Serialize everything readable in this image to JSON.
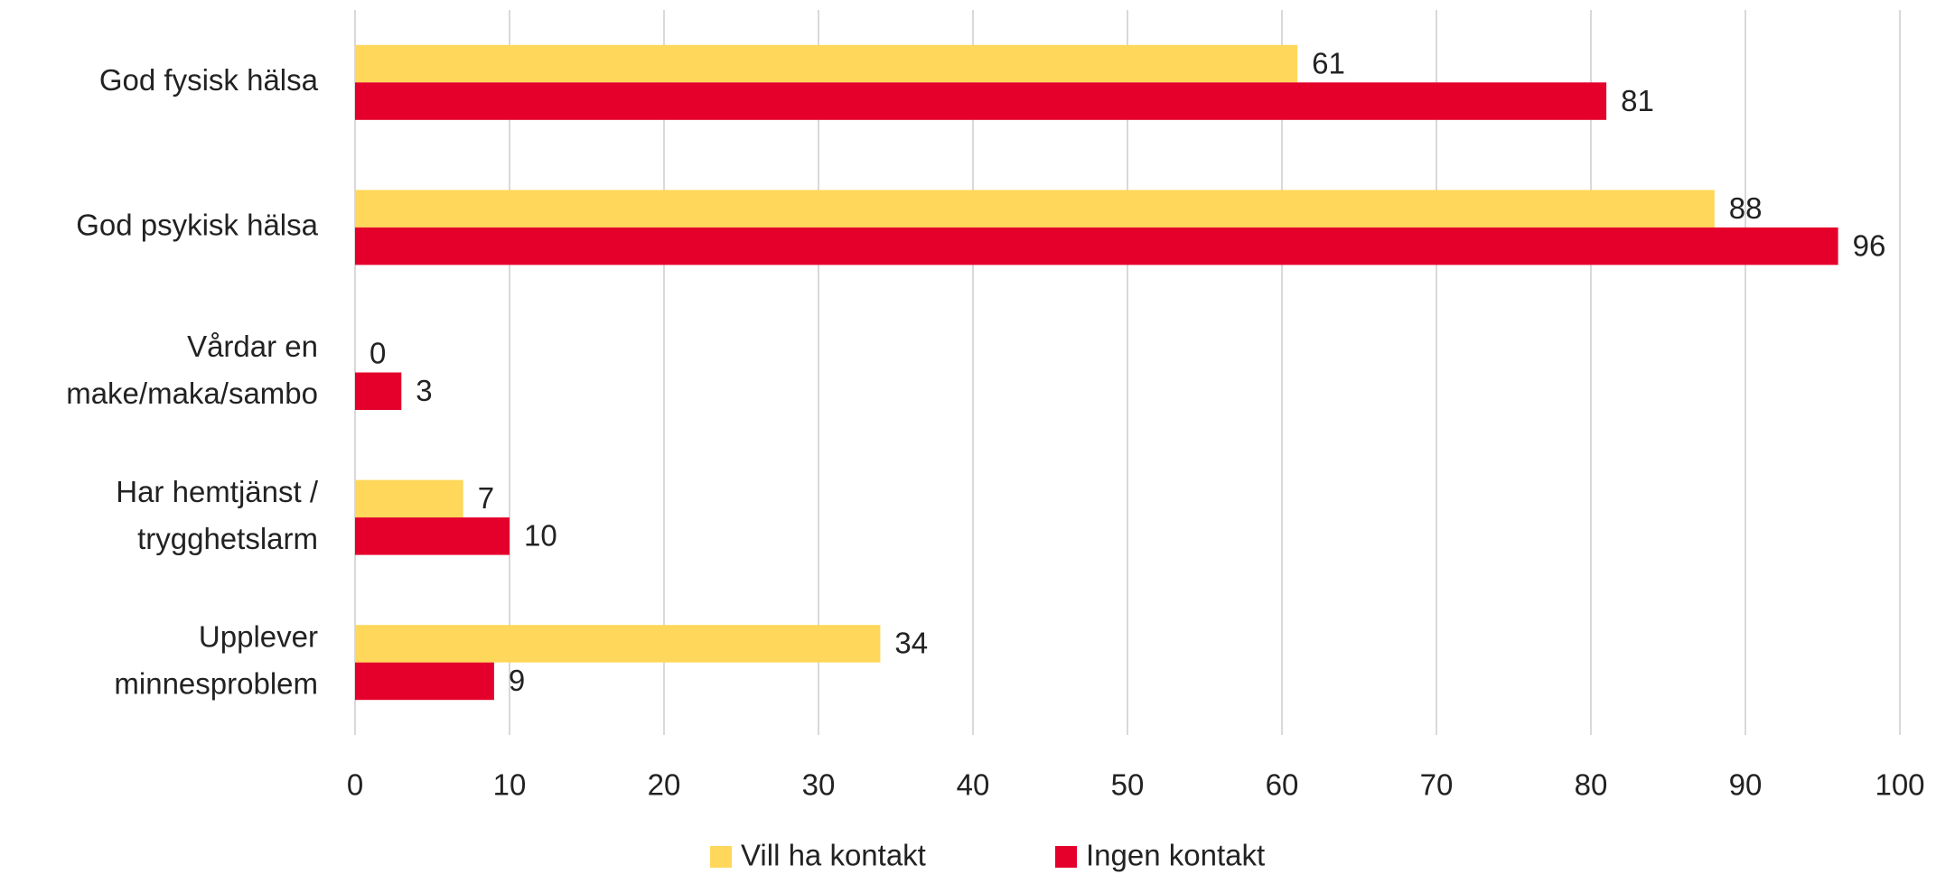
{
  "chart_data": {
    "type": "hbar",
    "categories": [
      [
        "God fysisk hälsa"
      ],
      [
        "God psykisk hälsa"
      ],
      [
        "Vårdar en",
        "make/maka/sambo"
      ],
      [
        "Har hemtjänst /",
        "trygghetslarm"
      ],
      [
        "Upplever",
        "minnesproblem"
      ]
    ],
    "series": [
      {
        "name": "Vill ha kontakt",
        "color": "#FFD75A",
        "values": [
          61,
          88,
          0,
          7,
          34
        ]
      },
      {
        "name": "Ingen kontakt",
        "color": "#E4002B",
        "values": [
          81,
          96,
          3,
          10,
          9
        ]
      }
    ],
    "xlim": [
      0,
      100
    ],
    "xticks": [
      0,
      10,
      20,
      30,
      40,
      50,
      60,
      70,
      80,
      90,
      100
    ],
    "grid": true,
    "legend": "bottom"
  }
}
